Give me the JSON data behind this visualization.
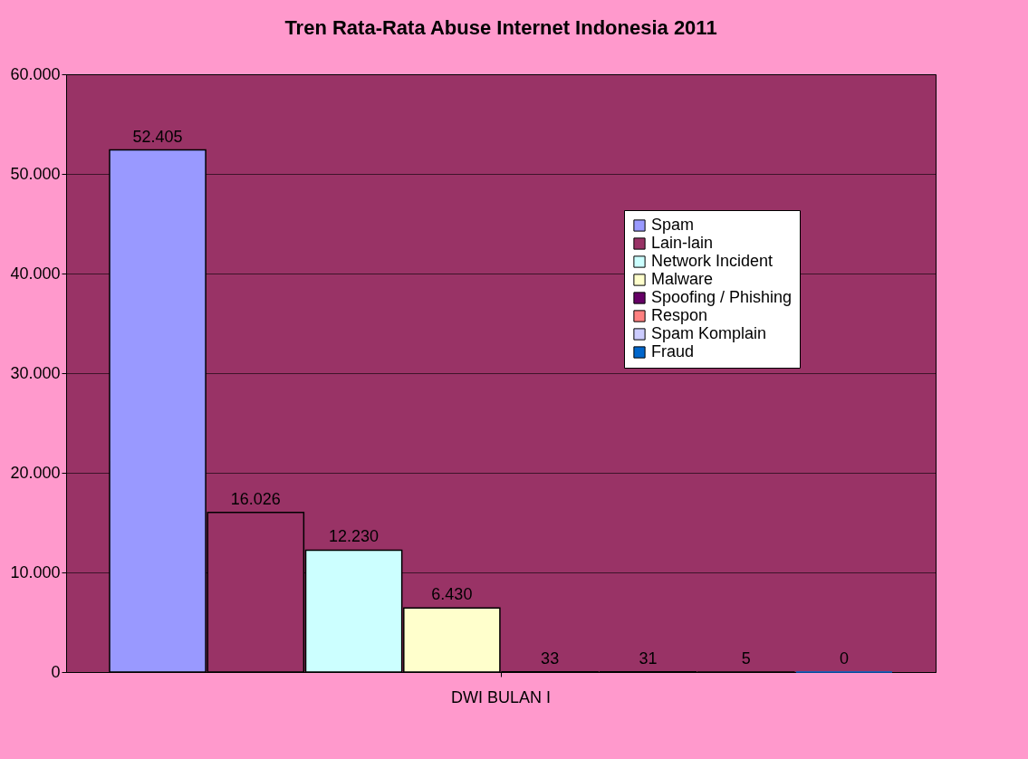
{
  "chart_data": {
    "type": "bar",
    "title": "Tren Rata-Rata Abuse Internet Indonesia 2011",
    "categories": [
      "DWI BULAN I"
    ],
    "series": [
      {
        "name": "Spam",
        "color": "#9999ff",
        "values": [
          52405
        ],
        "value_labels": [
          "52.405"
        ]
      },
      {
        "name": "Lain-lain",
        "color": "#993366",
        "values": [
          16026
        ],
        "value_labels": [
          "16.026"
        ]
      },
      {
        "name": "Network Incident",
        "color": "#ccffff",
        "values": [
          12230
        ],
        "value_labels": [
          "12.230"
        ]
      },
      {
        "name": "Malware",
        "color": "#ffffcc",
        "values": [
          6430
        ],
        "value_labels": [
          "6.430"
        ]
      },
      {
        "name": "Spoofing / Phishing",
        "color": "#660066",
        "values": [
          33
        ],
        "value_labels": [
          "33"
        ]
      },
      {
        "name": "Respon",
        "color": "#ff8080",
        "values": [
          31
        ],
        "value_labels": [
          "31"
        ]
      },
      {
        "name": "Spam Komplain",
        "color": "#ccccff",
        "values": [
          5
        ],
        "value_labels": [
          "5"
        ]
      },
      {
        "name": "Fraud",
        "color": "#0066cc",
        "values": [
          0
        ],
        "value_labels": [
          "0"
        ]
      }
    ],
    "ylim": [
      0,
      60000
    ],
    "yticks": [
      {
        "value": 0,
        "label": "0"
      },
      {
        "value": 10000,
        "label": "10.000"
      },
      {
        "value": 20000,
        "label": "20.000"
      },
      {
        "value": 30000,
        "label": "30.000"
      },
      {
        "value": 40000,
        "label": "40.000"
      },
      {
        "value": 50000,
        "label": "50.000"
      },
      {
        "value": 60000,
        "label": "60.000"
      }
    ],
    "grid": "y",
    "legend": "top right"
  }
}
